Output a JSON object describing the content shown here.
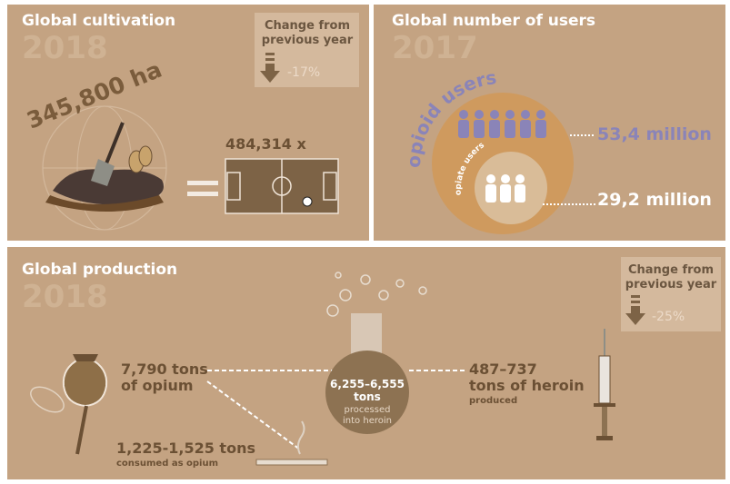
{
  "cultivation": {
    "title": "Global cultivation",
    "year": "2018",
    "change": {
      "label": [
        "Change from",
        "previous year"
      ],
      "value": "-17%"
    },
    "area": "345,800 ha",
    "fields": "484,314 x"
  },
  "users": {
    "title": "Global number of users",
    "year": "2017",
    "opioid": {
      "label": "opioid users",
      "value": "53,4 million"
    },
    "opiate": {
      "label": "opiate users",
      "value": "29,2 million"
    }
  },
  "production": {
    "title": "Global production",
    "year": "2018",
    "change": {
      "label": [
        "Change from",
        "previous year"
      ],
      "value": "-25%"
    },
    "opium": {
      "amount": "7,790 tons",
      "label": "of opium"
    },
    "consumed": {
      "amount": "1,225-1,525 tons",
      "label": "consumed as opium"
    },
    "processed": {
      "amount": "6,255–6,555",
      "unit": "tons",
      "label": [
        "processed",
        "into heroin"
      ]
    },
    "heroin": {
      "amount": "487–737",
      "unit": "tons of heroin",
      "label": "produced"
    }
  }
}
